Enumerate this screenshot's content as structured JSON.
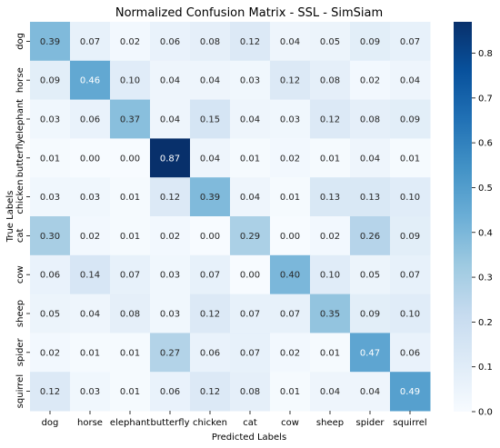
{
  "chart_data": {
    "type": "heatmap",
    "title": "Normalized Confusion Matrix - SSL - SimSiam",
    "xlabel": "Predicted Labels",
    "ylabel": "True Labels",
    "x_categories": [
      "dog",
      "horse",
      "elephant",
      "butterfly",
      "chicken",
      "cat",
      "cow",
      "sheep",
      "spider",
      "squirrel"
    ],
    "y_categories": [
      "dog",
      "horse",
      "elephant",
      "butterfly",
      "chicken",
      "cat",
      "cow",
      "sheep",
      "spider",
      "squirrel"
    ],
    "values": [
      [
        0.39,
        0.07,
        0.02,
        0.06,
        0.08,
        0.12,
        0.04,
        0.05,
        0.09,
        0.07
      ],
      [
        0.09,
        0.46,
        0.1,
        0.04,
        0.04,
        0.03,
        0.12,
        0.08,
        0.02,
        0.04
      ],
      [
        0.03,
        0.06,
        0.37,
        0.04,
        0.15,
        0.04,
        0.03,
        0.12,
        0.08,
        0.09
      ],
      [
        0.01,
        0.0,
        0.0,
        0.87,
        0.04,
        0.01,
        0.02,
        0.01,
        0.04,
        0.01
      ],
      [
        0.03,
        0.03,
        0.01,
        0.12,
        0.39,
        0.04,
        0.01,
        0.13,
        0.13,
        0.1
      ],
      [
        0.3,
        0.02,
        0.01,
        0.02,
        0.0,
        0.29,
        0.0,
        0.02,
        0.26,
        0.09
      ],
      [
        0.06,
        0.14,
        0.07,
        0.03,
        0.07,
        0.0,
        0.4,
        0.1,
        0.05,
        0.07
      ],
      [
        0.05,
        0.04,
        0.08,
        0.03,
        0.12,
        0.07,
        0.07,
        0.35,
        0.09,
        0.1
      ],
      [
        0.02,
        0.01,
        0.01,
        0.27,
        0.06,
        0.07,
        0.02,
        0.01,
        0.47,
        0.06
      ],
      [
        0.12,
        0.03,
        0.01,
        0.06,
        0.12,
        0.08,
        0.01,
        0.04,
        0.04,
        0.49
      ]
    ],
    "colorbar": {
      "min": 0.0,
      "max": 0.87,
      "ticks": [
        "0.0",
        "0.1",
        "0.2",
        "0.3",
        "0.4",
        "0.5",
        "0.6",
        "0.7",
        "0.8"
      ],
      "colormap": "Blues",
      "color_low": "#f7fbff",
      "color_high": "#08306b"
    },
    "annotation_colors": {
      "dark_text": "#262626",
      "light_text": "#ffffff"
    },
    "legend": "colorbar-right",
    "grid": false
  }
}
